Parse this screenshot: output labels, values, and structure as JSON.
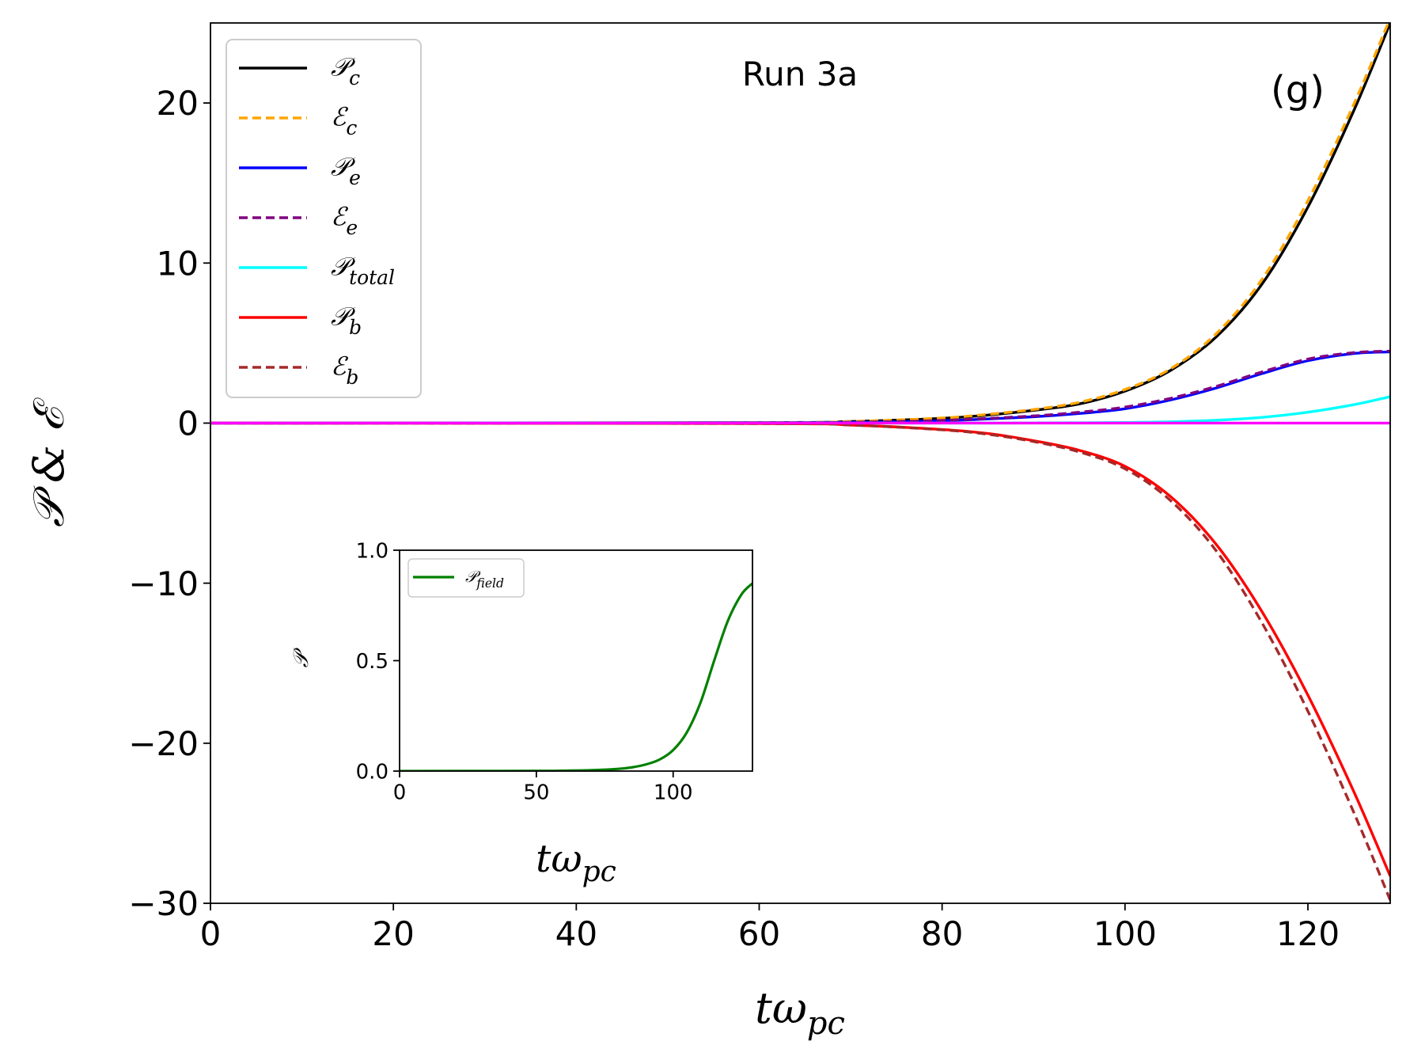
{
  "chart_data": [
    {
      "id": "main",
      "type": "line",
      "annotation_run": "Run 3a",
      "annotation_panel": "(g)",
      "xlabel": {
        "main": "tω",
        "sub": "pc"
      },
      "ylabel": "𝒫 & ℰ",
      "xlim": [
        0,
        129
      ],
      "ylim": [
        -30,
        25
      ],
      "xticks": [
        0,
        20,
        40,
        60,
        80,
        100,
        120
      ],
      "yticks": [
        -30,
        -20,
        -10,
        0,
        10,
        20
      ],
      "grid": false,
      "legend_position": "upper-left",
      "series": [
        {
          "key": "pc",
          "legend_main": "𝒫",
          "legend_sub": "c",
          "color": "#000000",
          "dash": "solid",
          "x": [
            0,
            60,
            70,
            80,
            85,
            90,
            95,
            100,
            105,
            110,
            115,
            120,
            125,
            129
          ],
          "y": [
            0,
            0.03,
            0.1,
            0.3,
            0.5,
            0.8,
            1.2,
            2.0,
            3.3,
            5.4,
            8.7,
            13.5,
            19.5,
            25
          ]
        },
        {
          "key": "ec",
          "legend_main": "ℰ",
          "legend_sub": "c",
          "color": "#ffa500",
          "dash": "dashed",
          "x": [
            0,
            60,
            70,
            80,
            85,
            90,
            95,
            100,
            105,
            110,
            115,
            120,
            125,
            129
          ],
          "y": [
            0,
            0.03,
            0.1,
            0.32,
            0.55,
            0.85,
            1.3,
            2.1,
            3.4,
            5.6,
            9.0,
            13.9,
            19.9,
            25.3
          ]
        },
        {
          "key": "pe",
          "legend_main": "𝒫",
          "legend_sub": "e",
          "color": "#0000ff",
          "dash": "solid",
          "x": [
            0,
            60,
            70,
            80,
            90,
            95,
            100,
            105,
            110,
            115,
            120,
            125,
            129
          ],
          "y": [
            0,
            0.02,
            0.05,
            0.15,
            0.4,
            0.6,
            0.9,
            1.45,
            2.2,
            3.1,
            3.9,
            4.35,
            4.45
          ]
        },
        {
          "key": "ee",
          "legend_main": "ℰ",
          "legend_sub": "e",
          "color": "#800080",
          "dash": "dashed",
          "x": [
            0,
            60,
            70,
            80,
            90,
            95,
            100,
            105,
            110,
            115,
            120,
            125,
            129
          ],
          "y": [
            0,
            0.02,
            0.05,
            0.17,
            0.45,
            0.68,
            1.0,
            1.55,
            2.3,
            3.2,
            4.0,
            4.4,
            4.5
          ]
        },
        {
          "key": "ptotal",
          "legend_main": "𝒫",
          "legend_sub": "total",
          "color": "#00ffff",
          "dash": "solid",
          "x": [
            0,
            80,
            90,
            95,
            100,
            105,
            110,
            115,
            120,
            125,
            129
          ],
          "y": [
            0,
            0,
            0.01,
            0.02,
            0.04,
            0.08,
            0.18,
            0.36,
            0.68,
            1.15,
            1.65
          ]
        },
        {
          "key": "pb",
          "legend_main": "𝒫",
          "legend_sub": "b",
          "color": "#ff0000",
          "dash": "solid",
          "x": [
            0,
            60,
            70,
            80,
            85,
            90,
            95,
            100,
            105,
            110,
            115,
            120,
            125,
            129
          ],
          "y": [
            0,
            -0.03,
            -0.12,
            -0.4,
            -0.65,
            -1.1,
            -1.7,
            -2.7,
            -4.6,
            -7.6,
            -11.8,
            -17.0,
            -23.0,
            -28.3
          ]
        },
        {
          "key": "eb",
          "legend_main": "ℰ",
          "legend_sub": "b",
          "color": "#a52a2a",
          "dash": "dashed",
          "x": [
            0,
            60,
            70,
            80,
            85,
            90,
            95,
            100,
            105,
            110,
            115,
            120,
            125,
            129
          ],
          "y": [
            0,
            -0.03,
            -0.12,
            -0.42,
            -0.7,
            -1.15,
            -1.8,
            -2.85,
            -4.85,
            -8.0,
            -12.5,
            -18.0,
            -24.3,
            -29.8
          ]
        },
        {
          "key": "zero",
          "legend_main": "",
          "legend_sub": "",
          "color": "#ff00ff",
          "dash": "solid",
          "x": [
            0,
            129
          ],
          "y": [
            0,
            0
          ]
        }
      ]
    },
    {
      "id": "inset",
      "type": "line",
      "xlabel": {
        "main": "tω",
        "sub": "pc"
      },
      "ylabel": "𝒫",
      "xlim": [
        0,
        129
      ],
      "ylim": [
        0,
        1.0
      ],
      "xticks": [
        0,
        50,
        100
      ],
      "ytick_labels": [
        "0.0",
        "0.5",
        "1.0"
      ],
      "yticks": [
        0,
        0.5,
        1.0
      ],
      "legend_position": "upper-left",
      "series": [
        {
          "key": "pfield",
          "legend_main": "𝒫",
          "legend_sub": "field",
          "color": "#008000",
          "dash": "solid",
          "x": [
            0,
            50,
            60,
            70,
            80,
            85,
            90,
            95,
            100,
            105,
            110,
            115,
            120,
            125,
            129
          ],
          "y": [
            0,
            0.001,
            0.002,
            0.004,
            0.01,
            0.017,
            0.03,
            0.052,
            0.095,
            0.175,
            0.31,
            0.5,
            0.68,
            0.8,
            0.85
          ]
        }
      ]
    }
  ]
}
